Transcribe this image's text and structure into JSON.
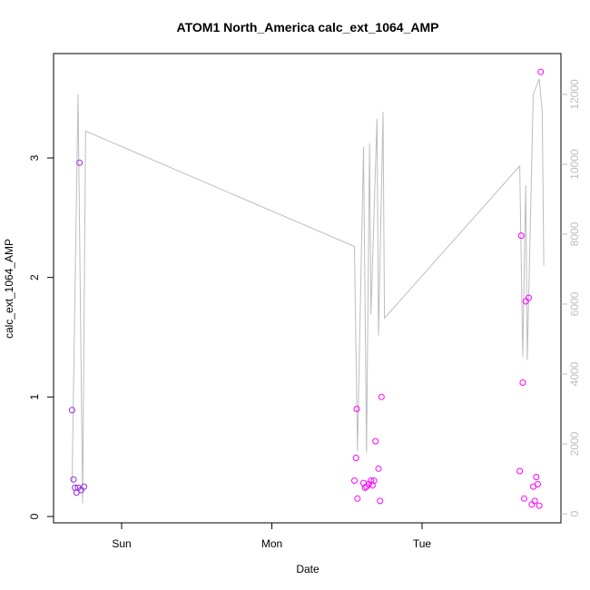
{
  "chart_data": {
    "type": "scatter",
    "title": "ATOM1 North_America calc_ext_1064_AMP",
    "xlabel": "Date",
    "ylabel": "calc_ext_1064_AMP",
    "x_ticks": [
      "Sun",
      "Mon",
      "Tue"
    ],
    "y_ticks": [
      "0",
      "1",
      "2",
      "3"
    ],
    "y_right_ticks": [
      "0",
      "2000",
      "4000",
      "6000",
      "8000",
      "10000",
      "12000"
    ],
    "ylim": [
      0,
      3.72
    ],
    "y_right_lim": [
      0,
      13000
    ],
    "xlim_days_from_sun": [
      -0.45,
      2.95
    ],
    "colors": {
      "frame": "#000000",
      "line": "#bdbdbd",
      "points_start": "#8a2be2",
      "points_end": "#ff00ff"
    },
    "line_series": {
      "name": "",
      "points": [
        [
          -0.33,
          900
        ],
        [
          -0.29,
          12000
        ],
        [
          -0.26,
          300
        ],
        [
          -0.24,
          10950
        ],
        [
          1.55,
          7650
        ],
        [
          1.57,
          1800
        ],
        [
          1.61,
          10500
        ],
        [
          1.63,
          1750
        ],
        [
          1.65,
          10600
        ],
        [
          1.66,
          5700
        ],
        [
          1.7,
          11300
        ],
        [
          1.71,
          5100
        ],
        [
          1.74,
          11500
        ],
        [
          1.75,
          5600
        ],
        [
          2.65,
          9950
        ],
        [
          2.67,
          4500
        ],
        [
          2.69,
          9400
        ],
        [
          2.7,
          4400
        ],
        [
          2.74,
          12000
        ],
        [
          2.78,
          12450
        ],
        [
          2.8,
          11500
        ],
        [
          2.81,
          7100
        ]
      ]
    },
    "scatter_series": {
      "name": "",
      "points": [
        [
          -0.33,
          0.89
        ],
        [
          -0.32,
          0.31
        ],
        [
          -0.31,
          0.24
        ],
        [
          -0.3,
          0.2
        ],
        [
          -0.29,
          0.24
        ],
        [
          -0.28,
          2.96
        ],
        [
          -0.27,
          0.22
        ],
        [
          -0.25,
          0.25
        ],
        [
          1.55,
          0.3
        ],
        [
          1.56,
          0.49
        ],
        [
          1.565,
          0.9
        ],
        [
          1.57,
          0.15
        ],
        [
          1.61,
          0.28
        ],
        [
          1.62,
          0.24
        ],
        [
          1.63,
          0.25
        ],
        [
          1.645,
          0.27
        ],
        [
          1.66,
          0.3
        ],
        [
          1.67,
          0.26
        ],
        [
          1.68,
          0.3
        ],
        [
          1.69,
          0.63
        ],
        [
          1.71,
          0.4
        ],
        [
          1.72,
          0.13
        ],
        [
          1.73,
          1.0
        ],
        [
          2.65,
          0.38
        ],
        [
          2.66,
          2.35
        ],
        [
          2.67,
          1.12
        ],
        [
          2.68,
          0.15
        ],
        [
          2.69,
          1.8
        ],
        [
          2.71,
          1.83
        ],
        [
          2.73,
          0.1
        ],
        [
          2.74,
          0.25
        ],
        [
          2.75,
          0.13
        ],
        [
          2.76,
          0.33
        ],
        [
          2.77,
          0.27
        ],
        [
          2.78,
          0.09
        ],
        [
          2.79,
          3.72
        ]
      ]
    }
  }
}
